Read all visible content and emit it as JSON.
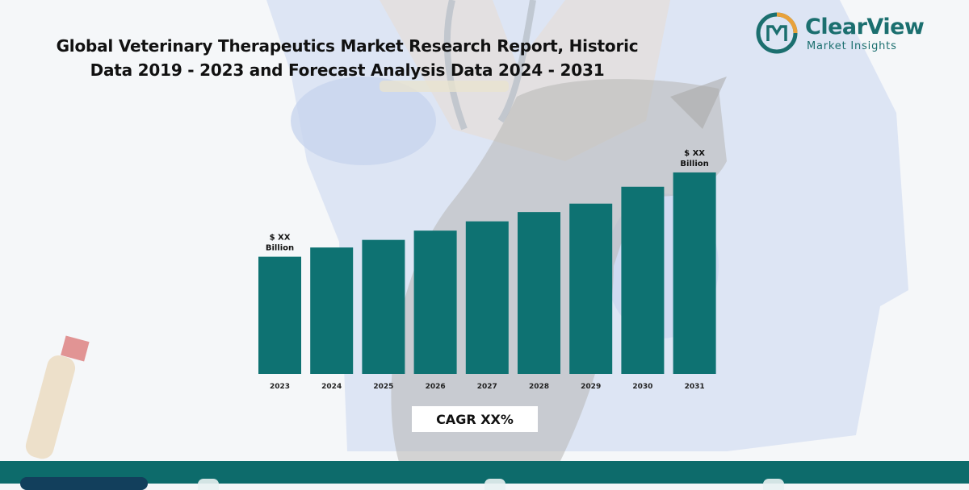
{
  "title": "Global Veterinary Therapeutics Market Research Report, Historic Data 2019 - 2023 and Forecast Analysis Data 2024 - 2031",
  "brand": {
    "name": "ClearView",
    "tagline": "Market Insights",
    "color": "#1b6f6f"
  },
  "cagr_label": "CAGR XX%",
  "colors": {
    "bar": "#0e7272",
    "footer": "#0d6b6b"
  },
  "chart_data": {
    "type": "bar",
    "categories": [
      "2023",
      "2024",
      "2025",
      "2026",
      "2027",
      "2028",
      "2029",
      "2030",
      "2031"
    ],
    "values": [
      139,
      150,
      159,
      170,
      181,
      192,
      202,
      222,
      239
    ],
    "annotations": [
      {
        "category": "2023",
        "text": [
          "$ XX",
          "Billion"
        ]
      },
      {
        "category": "2031",
        "text": [
          "$ XX",
          "Billion"
        ]
      }
    ],
    "ylim": [
      0,
      260
    ],
    "grid": false,
    "legend": "none"
  }
}
